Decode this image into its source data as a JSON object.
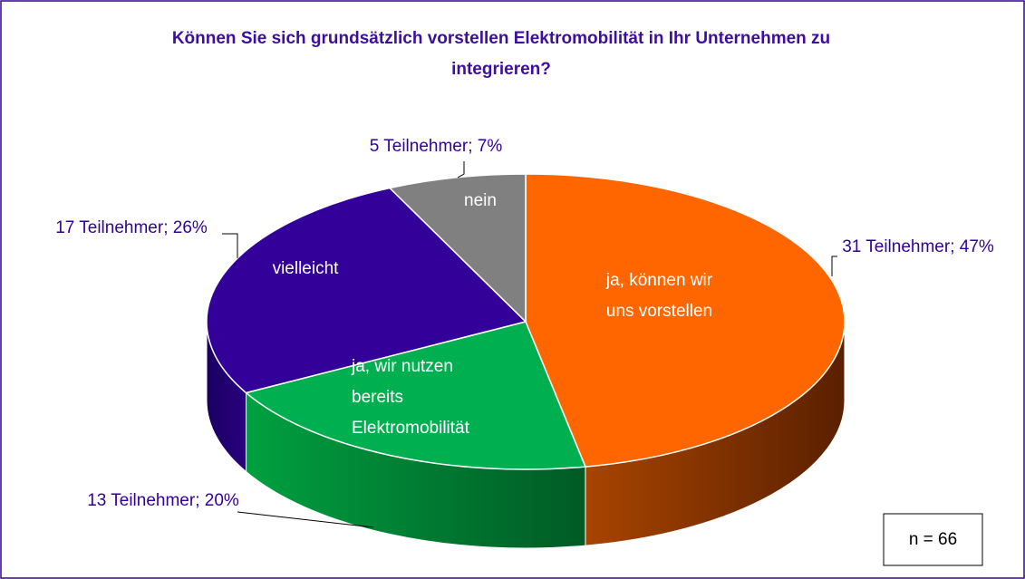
{
  "chart_data": {
    "type": "pie",
    "title": "Können Sie sich grundsätzlich vorstellen Elektromobilität in Ihr Unternehmen zu integrieren?",
    "categories": [
      "ja, können wir uns vorstellen",
      "ja, wir nutzen bereits Elektromobilität",
      "vielleicht",
      "nein"
    ],
    "values": [
      47,
      20,
      26,
      7
    ],
    "value_labels": [
      "31 Teilnehmer; 47%",
      "13 Teilnehmer; 20%",
      "17 Teilnehmer; 26%",
      "5 Teilnehmer; 7%"
    ],
    "colors": [
      "#ff6600",
      "#00b050",
      "#330099",
      "#808080"
    ],
    "annotation": "n = 66"
  }
}
